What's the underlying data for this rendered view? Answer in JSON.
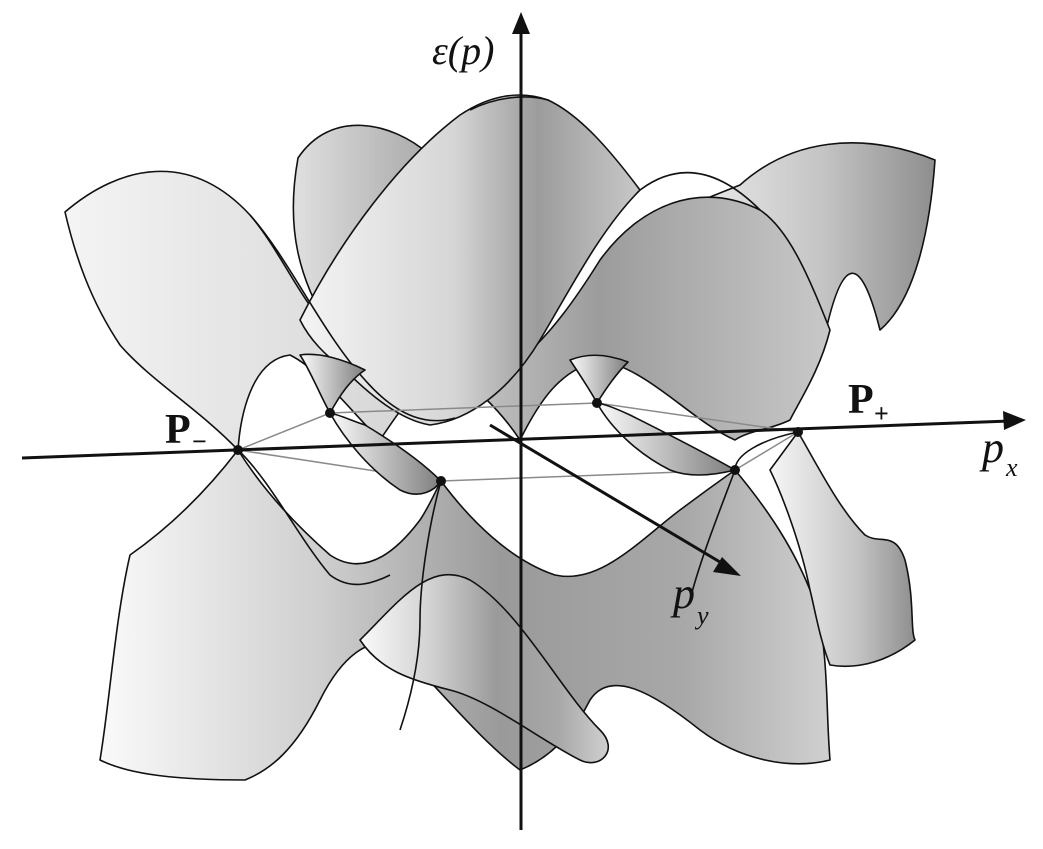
{
  "axes": {
    "energy_label": "ε(p)",
    "px_label_main": "p",
    "px_label_sub": "x",
    "py_label_main": "p",
    "py_label_sub": "y"
  },
  "points": {
    "p_minus_main": "P",
    "p_minus_sub": "−",
    "p_plus_main": "P",
    "p_plus_sub": "+"
  },
  "colors": {
    "line": "#111111",
    "hexagon": "#8a8a8a",
    "surface_light": "#f2f2f2",
    "surface_dark": "#8c8c8c"
  }
}
